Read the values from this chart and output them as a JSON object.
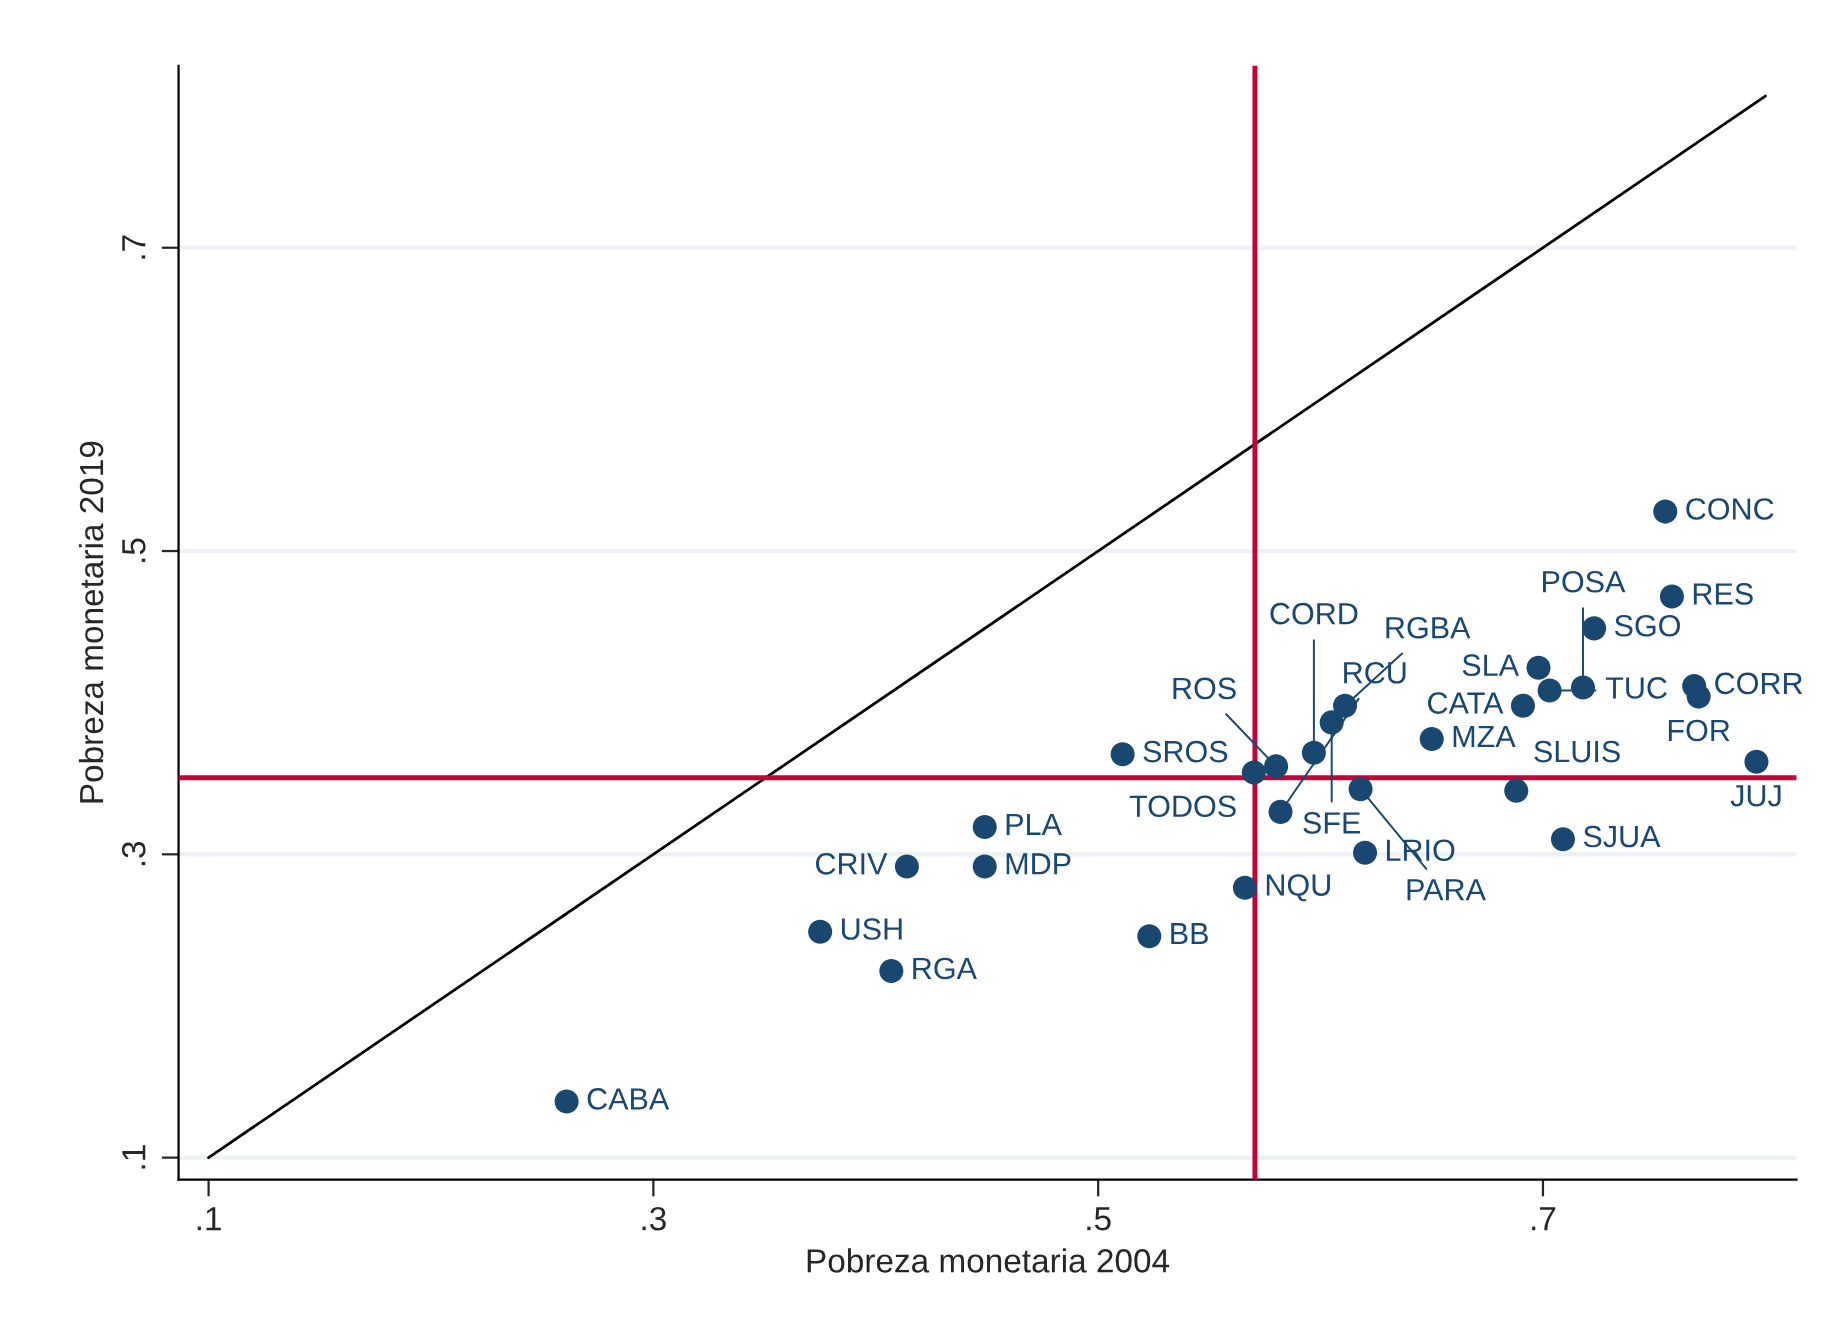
{
  "chart_data": {
    "type": "scatter",
    "xlabel": "Pobreza monetaria 2004",
    "ylabel": "Pobreza monetaria 2019",
    "xlim": [
      0.0865,
      0.814
    ],
    "ylim": [
      0.0855,
      0.82
    ],
    "xticks": [
      {
        "value": 0.1,
        "label": ".1"
      },
      {
        "value": 0.3,
        "label": ".3"
      },
      {
        "value": 0.5,
        "label": ".5"
      },
      {
        "value": 0.7,
        "label": ".7"
      }
    ],
    "yticks": [
      {
        "value": 0.1,
        "label": ".1"
      },
      {
        "value": 0.3,
        "label": ".3"
      },
      {
        "value": 0.5,
        "label": ".5"
      },
      {
        "value": 0.7,
        "label": ".7"
      }
    ],
    "grid": "y",
    "marker": "circle",
    "legend": false,
    "series": [
      {
        "color": "#1a476f",
        "x": [
          0.261,
          0.375,
          0.407,
          0.414,
          0.449,
          0.449,
          0.523,
          0.566,
          0.511,
          0.57,
          0.58,
          0.582,
          0.62,
          0.618,
          0.597,
          0.605,
          0.611,
          0.65,
          0.688,
          0.709,
          0.691,
          0.698,
          0.703,
          0.718,
          0.768,
          0.77,
          0.796,
          0.723,
          0.758,
          0.755
        ],
        "values": [
          0.137,
          0.249,
          0.223,
          0.292,
          0.292,
          0.318,
          0.246,
          0.278,
          0.366,
          0.354,
          0.358,
          0.328,
          0.301,
          0.343,
          0.367,
          0.387,
          0.398,
          0.376,
          0.342,
          0.31,
          0.398,
          0.423,
          0.408,
          0.41,
          0.411,
          0.404,
          0.361,
          0.449,
          0.47,
          0.526
        ]
      },
      {
        "type": "line",
        "marker": "none",
        "color": "#000000",
        "x": [
          0.1,
          0.8
        ],
        "values": [
          0.1,
          0.8
        ]
      }
    ],
    "ref_lines": [
      {
        "axis": "x",
        "value": 0.5705,
        "label": null,
        "color": "#c10534"
      },
      {
        "axis": "y",
        "value": 0.3505,
        "label": null,
        "color": "#c10534"
      }
    ],
    "annotations": [
      {
        "text": "CABA",
        "x": 0.261,
        "y": 0.137
      },
      {
        "text": "USH",
        "x": 0.375,
        "y": 0.249
      },
      {
        "text": "RGA",
        "x": 0.407,
        "y": 0.223
      },
      {
        "text": "CRIV",
        "x": 0.414,
        "y": 0.292
      },
      {
        "text": "MDP",
        "x": 0.449,
        "y": 0.292
      },
      {
        "text": "PLA",
        "x": 0.449,
        "y": 0.318
      },
      {
        "text": "BB",
        "x": 0.523,
        "y": 0.246
      },
      {
        "text": "NQU",
        "x": 0.566,
        "y": 0.278
      },
      {
        "text": "SROS",
        "x": 0.511,
        "y": 0.366
      },
      {
        "text": "TODOS",
        "x": 0.57,
        "y": 0.354
      },
      {
        "text": "ROS",
        "x": 0.58,
        "y": 0.358
      },
      {
        "text": "RCU",
        "x": 0.582,
        "y": 0.328
      },
      {
        "text": "LRIO",
        "x": 0.62,
        "y": 0.301
      },
      {
        "text": "PARA",
        "x": 0.618,
        "y": 0.343
      },
      {
        "text": "CORD",
        "x": 0.597,
        "y": 0.367
      },
      {
        "text": "SFE",
        "x": 0.605,
        "y": 0.387
      },
      {
        "text": "RGBA",
        "x": 0.611,
        "y": 0.398
      },
      {
        "text": "MZA",
        "x": 0.65,
        "y": 0.376
      },
      {
        "text": "SLUIS",
        "x": 0.688,
        "y": 0.342
      },
      {
        "text": "SJUA",
        "x": 0.709,
        "y": 0.31
      },
      {
        "text": "CATA",
        "x": 0.691,
        "y": 0.398
      },
      {
        "text": "SLA",
        "x": 0.698,
        "y": 0.423
      },
      {
        "text": "TUC",
        "x": 0.703,
        "y": 0.408
      },
      {
        "text": "POSA",
        "x": 0.718,
        "y": 0.41
      },
      {
        "text": "CORR",
        "x": 0.768,
        "y": 0.411
      },
      {
        "text": "FOR",
        "x": 0.77,
        "y": 0.404
      },
      {
        "text": "JUJ",
        "x": 0.796,
        "y": 0.361
      },
      {
        "text": "SGO",
        "x": 0.723,
        "y": 0.449
      },
      {
        "text": "RES",
        "x": 0.758,
        "y": 0.47
      },
      {
        "text": "CONC",
        "x": 0.755,
        "y": 0.526
      }
    ]
  }
}
